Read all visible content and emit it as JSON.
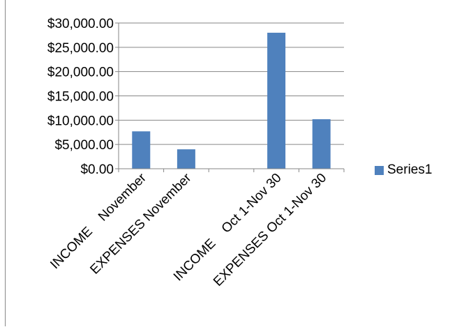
{
  "chart_data": {
    "type": "bar",
    "categories": [
      "INCOME    November",
      "EXPENSES November",
      "",
      "INCOME    Oct 1-Nov 30",
      "EXPENSES Oct 1-Nov 30"
    ],
    "series": [
      {
        "name": "Series1",
        "values": [
          7700,
          4000,
          0,
          28000,
          10200
        ]
      }
    ],
    "ylim": [
      0,
      30000
    ],
    "yticks": [
      0,
      5000,
      10000,
      15000,
      20000,
      25000,
      30000
    ],
    "ytick_labels": [
      "$0.00",
      "$5,000.00",
      "$10,000.00",
      "$15,000.00",
      "$20,000.00",
      "$25,000.00",
      "$30,000.00"
    ],
    "grid": true,
    "legend_position": "right",
    "colors": {
      "bar": "#4F81BD",
      "grid": "#868686",
      "axis": "#868686"
    }
  }
}
